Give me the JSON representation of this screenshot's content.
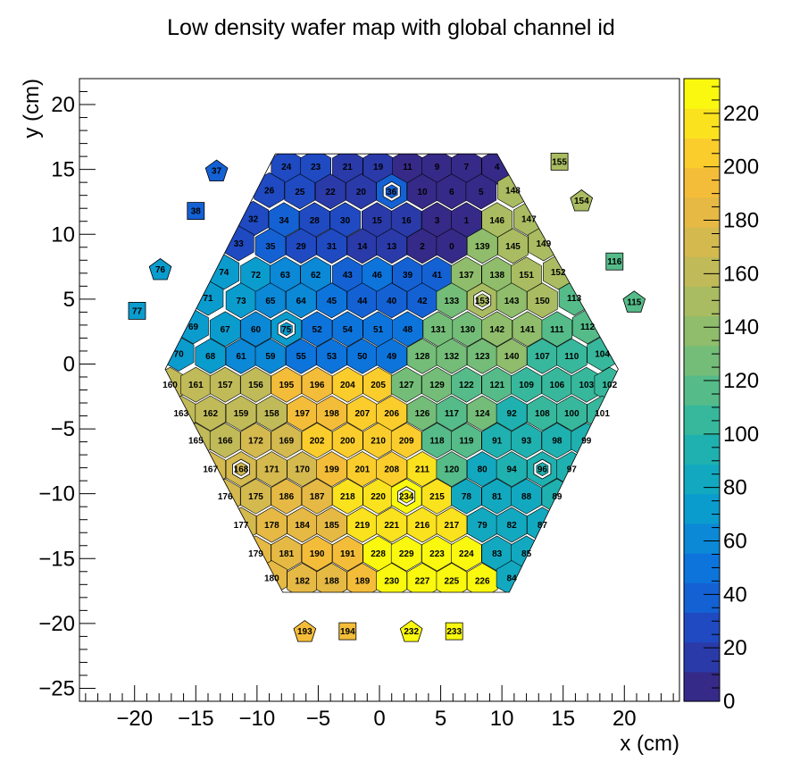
{
  "chart_data": {
    "type": "heatmap",
    "title": "Low density wafer map with global channel id",
    "xlabel": "x (cm)",
    "ylabel": "y (cm)",
    "xlim": [
      -24.5,
      24.5
    ],
    "ylim": [
      -26,
      22
    ],
    "x_ticks": [
      -20,
      -15,
      -10,
      -5,
      0,
      5,
      10,
      15,
      20
    ],
    "x_tick_labels": [
      "−20",
      "−15",
      "−10",
      "−5",
      "0",
      "5",
      "10",
      "15",
      "20"
    ],
    "y_ticks": [
      -25,
      -20,
      -15,
      -10,
      -5,
      0,
      5,
      10,
      15,
      20
    ],
    "y_tick_labels": [
      "−25",
      "−20",
      "−15",
      "−10",
      "−5",
      "0",
      "5",
      "10",
      "15",
      "20"
    ],
    "colorbar": {
      "range": [
        0,
        233
      ],
      "ticks": [
        0,
        20,
        40,
        60,
        80,
        100,
        120,
        140,
        160,
        180,
        200,
        220
      ],
      "tick_labels": [
        "0",
        "20",
        "40",
        "60",
        "80",
        "100",
        "120",
        "140",
        "160",
        "180",
        "200",
        "220"
      ],
      "palette": [
        "#352a87",
        "#2a3aa8",
        "#1f4ac1",
        "#1461d4",
        "#0d74dc",
        "#0b88d6",
        "#0b9cce",
        "#12a9c0",
        "#1fb1b0",
        "#37b89c",
        "#55bb89",
        "#74bd78",
        "#8fbd6b",
        "#a9bc61",
        "#c0ba59",
        "#d4b94f",
        "#e5b944",
        "#f4bd39",
        "#fbcd2c",
        "#fbe21e",
        "#f9f80e"
      ]
    },
    "cells": [
      {
        "id": 24,
        "x": -7.6,
        "y": 15.2
      },
      {
        "id": 23,
        "x": -5.2,
        "y": 15.2
      },
      {
        "id": 21,
        "x": -2.6,
        "y": 15.2
      },
      {
        "id": 19,
        "x": -0.1,
        "y": 15.2
      },
      {
        "id": 11,
        "x": 2.3,
        "y": 15.2
      },
      {
        "id": 9,
        "x": 4.7,
        "y": 15.2
      },
      {
        "id": 7,
        "x": 7.1,
        "y": 15.2
      },
      {
        "id": 4,
        "x": 9.6,
        "y": 15.2
      },
      {
        "id": 26,
        "x": -9.0,
        "y": 13.4
      },
      {
        "id": 25,
        "x": -6.5,
        "y": 13.3
      },
      {
        "id": 22,
        "x": -4.0,
        "y": 13.3
      },
      {
        "id": 20,
        "x": -1.5,
        "y": 13.3
      },
      {
        "id": 36,
        "x": 1.0,
        "y": 13.3
      },
      {
        "id": 10,
        "x": 3.5,
        "y": 13.3
      },
      {
        "id": 6,
        "x": 5.9,
        "y": 13.3
      },
      {
        "id": 5,
        "x": 8.3,
        "y": 13.3
      },
      {
        "id": 148,
        "x": 10.9,
        "y": 13.4
      },
      {
        "id": 32,
        "x": -10.3,
        "y": 11.2
      },
      {
        "id": 34,
        "x": -7.8,
        "y": 11.1
      },
      {
        "id": 28,
        "x": -5.3,
        "y": 11.1
      },
      {
        "id": 30,
        "x": -2.8,
        "y": 11.1
      },
      {
        "id": 15,
        "x": -0.2,
        "y": 11.1
      },
      {
        "id": 16,
        "x": 2.2,
        "y": 11.1
      },
      {
        "id": 3,
        "x": 4.7,
        "y": 11.1
      },
      {
        "id": 1,
        "x": 7.1,
        "y": 11.1
      },
      {
        "id": 146,
        "x": 9.6,
        "y": 11.1
      },
      {
        "id": 147,
        "x": 12.2,
        "y": 11.2
      },
      {
        "id": 33,
        "x": -11.5,
        "y": 9.3
      },
      {
        "id": 35,
        "x": -8.9,
        "y": 9.1
      },
      {
        "id": 29,
        "x": -6.4,
        "y": 9.1
      },
      {
        "id": 31,
        "x": -3.9,
        "y": 9.1
      },
      {
        "id": 14,
        "x": -1.4,
        "y": 9.1
      },
      {
        "id": 13,
        "x": 1.0,
        "y": 9.1
      },
      {
        "id": 2,
        "x": 3.5,
        "y": 9.1
      },
      {
        "id": 0,
        "x": 5.9,
        "y": 9.1
      },
      {
        "id": 139,
        "x": 8.4,
        "y": 9.1
      },
      {
        "id": 145,
        "x": 10.9,
        "y": 9.1
      },
      {
        "id": 149,
        "x": 13.4,
        "y": 9.3
      },
      {
        "id": 74,
        "x": -12.7,
        "y": 7.1
      },
      {
        "id": 72,
        "x": -10.1,
        "y": 6.9
      },
      {
        "id": 63,
        "x": -7.7,
        "y": 6.9
      },
      {
        "id": 62,
        "x": -5.2,
        "y": 6.9
      },
      {
        "id": 43,
        "x": -2.6,
        "y": 6.9
      },
      {
        "id": 46,
        "x": -0.2,
        "y": 6.9
      },
      {
        "id": 39,
        "x": 2.3,
        "y": 6.9
      },
      {
        "id": 41,
        "x": 4.7,
        "y": 6.9
      },
      {
        "id": 137,
        "x": 7.1,
        "y": 6.9
      },
      {
        "id": 138,
        "x": 9.6,
        "y": 6.9
      },
      {
        "id": 151,
        "x": 12.0,
        "y": 6.9
      },
      {
        "id": 152,
        "x": 14.6,
        "y": 7.1
      },
      {
        "id": 71,
        "x": -14.0,
        "y": 5.1
      },
      {
        "id": 73,
        "x": -11.3,
        "y": 4.9
      },
      {
        "id": 65,
        "x": -8.9,
        "y": 4.9
      },
      {
        "id": 64,
        "x": -6.4,
        "y": 4.9
      },
      {
        "id": 45,
        "x": -3.9,
        "y": 4.9
      },
      {
        "id": 44,
        "x": -1.4,
        "y": 4.9
      },
      {
        "id": 40,
        "x": 1.0,
        "y": 4.9
      },
      {
        "id": 42,
        "x": 3.5,
        "y": 4.9
      },
      {
        "id": 133,
        "x": 5.9,
        "y": 4.9
      },
      {
        "id": 153,
        "x": 8.4,
        "y": 4.9
      },
      {
        "id": 143,
        "x": 10.8,
        "y": 4.9
      },
      {
        "id": 150,
        "x": 13.3,
        "y": 4.9
      },
      {
        "id": 113,
        "x": 15.9,
        "y": 5.1
      },
      {
        "id": 69,
        "x": -15.2,
        "y": 2.9
      },
      {
        "id": 67,
        "x": -12.6,
        "y": 2.7
      },
      {
        "id": 60,
        "x": -10.1,
        "y": 2.7
      },
      {
        "id": 75,
        "x": -7.6,
        "y": 2.7
      },
      {
        "id": 52,
        "x": -5.1,
        "y": 2.7
      },
      {
        "id": 54,
        "x": -2.6,
        "y": 2.7
      },
      {
        "id": 51,
        "x": -0.1,
        "y": 2.7
      },
      {
        "id": 48,
        "x": 2.3,
        "y": 2.7
      },
      {
        "id": 131,
        "x": 4.8,
        "y": 2.7
      },
      {
        "id": 130,
        "x": 7.2,
        "y": 2.7
      },
      {
        "id": 142,
        "x": 9.6,
        "y": 2.7
      },
      {
        "id": 141,
        "x": 12.1,
        "y": 2.7
      },
      {
        "id": 111,
        "x": 14.5,
        "y": 2.7
      },
      {
        "id": 112,
        "x": 17.0,
        "y": 2.9
      },
      {
        "id": 70,
        "x": -16.4,
        "y": 0.8
      },
      {
        "id": 68,
        "x": -13.8,
        "y": 0.6
      },
      {
        "id": 61,
        "x": -11.3,
        "y": 0.6
      },
      {
        "id": 59,
        "x": -8.9,
        "y": 0.6
      },
      {
        "id": 55,
        "x": -6.4,
        "y": 0.6
      },
      {
        "id": 53,
        "x": -3.9,
        "y": 0.6
      },
      {
        "id": 50,
        "x": -1.4,
        "y": 0.6
      },
      {
        "id": 49,
        "x": 1.0,
        "y": 0.6
      },
      {
        "id": 128,
        "x": 3.5,
        "y": 0.6
      },
      {
        "id": 132,
        "x": 5.9,
        "y": 0.6
      },
      {
        "id": 123,
        "x": 8.4,
        "y": 0.6
      },
      {
        "id": 140,
        "x": 10.8,
        "y": 0.6
      },
      {
        "id": 107,
        "x": 13.3,
        "y": 0.6
      },
      {
        "id": 110,
        "x": 15.7,
        "y": 0.6
      },
      {
        "id": 104,
        "x": 18.2,
        "y": 0.8
      },
      {
        "id": 160,
        "x": -17.1,
        "y": -1.6
      },
      {
        "id": 161,
        "x": -15.0,
        "y": -1.6
      },
      {
        "id": 157,
        "x": -12.6,
        "y": -1.6
      },
      {
        "id": 156,
        "x": -10.1,
        "y": -1.6
      },
      {
        "id": 195,
        "x": -7.6,
        "y": -1.6
      },
      {
        "id": 196,
        "x": -5.1,
        "y": -1.6
      },
      {
        "id": 204,
        "x": -2.6,
        "y": -1.6
      },
      {
        "id": 205,
        "x": -0.1,
        "y": -1.6
      },
      {
        "id": 127,
        "x": 2.2,
        "y": -1.6
      },
      {
        "id": 129,
        "x": 4.7,
        "y": -1.6
      },
      {
        "id": 122,
        "x": 7.1,
        "y": -1.6
      },
      {
        "id": 121,
        "x": 9.6,
        "y": -1.6
      },
      {
        "id": 109,
        "x": 12.0,
        "y": -1.6
      },
      {
        "id": 106,
        "x": 14.5,
        "y": -1.6
      },
      {
        "id": 103,
        "x": 16.9,
        "y": -1.6
      },
      {
        "id": 102,
        "x": 18.8,
        "y": -1.6
      },
      {
        "id": 163,
        "x": -16.2,
        "y": -3.8
      },
      {
        "id": 162,
        "x": -13.8,
        "y": -3.8
      },
      {
        "id": 159,
        "x": -11.3,
        "y": -3.8
      },
      {
        "id": 158,
        "x": -8.8,
        "y": -3.8
      },
      {
        "id": 197,
        "x": -6.3,
        "y": -3.8
      },
      {
        "id": 198,
        "x": -3.9,
        "y": -3.8
      },
      {
        "id": 207,
        "x": -1.4,
        "y": -3.8
      },
      {
        "id": 206,
        "x": 1.0,
        "y": -3.8
      },
      {
        "id": 126,
        "x": 3.5,
        "y": -3.8
      },
      {
        "id": 117,
        "x": 5.9,
        "y": -3.8
      },
      {
        "id": 124,
        "x": 8.4,
        "y": -3.8
      },
      {
        "id": 92,
        "x": 10.8,
        "y": -3.8
      },
      {
        "id": 108,
        "x": 13.3,
        "y": -3.8
      },
      {
        "id": 100,
        "x": 15.7,
        "y": -3.8
      },
      {
        "id": 101,
        "x": 18.2,
        "y": -3.8
      },
      {
        "id": 165,
        "x": -15.0,
        "y": -5.9
      },
      {
        "id": 166,
        "x": -12.6,
        "y": -5.9
      },
      {
        "id": 172,
        "x": -10.1,
        "y": -5.9
      },
      {
        "id": 169,
        "x": -7.6,
        "y": -5.9
      },
      {
        "id": 202,
        "x": -5.1,
        "y": -5.9
      },
      {
        "id": 200,
        "x": -2.6,
        "y": -5.9
      },
      {
        "id": 210,
        "x": -0.1,
        "y": -5.9
      },
      {
        "id": 209,
        "x": 2.2,
        "y": -5.9
      },
      {
        "id": 118,
        "x": 4.7,
        "y": -5.9
      },
      {
        "id": 119,
        "x": 7.1,
        "y": -5.9
      },
      {
        "id": 91,
        "x": 9.6,
        "y": -5.9
      },
      {
        "id": 93,
        "x": 12.0,
        "y": -5.9
      },
      {
        "id": 98,
        "x": 14.5,
        "y": -5.9
      },
      {
        "id": 99,
        "x": 16.9,
        "y": -5.9
      },
      {
        "id": 167,
        "x": -13.8,
        "y": -8.1
      },
      {
        "id": 168,
        "x": -11.3,
        "y": -8.1
      },
      {
        "id": 171,
        "x": -8.8,
        "y": -8.1
      },
      {
        "id": 170,
        "x": -6.3,
        "y": -8.1
      },
      {
        "id": 199,
        "x": -3.9,
        "y": -8.1
      },
      {
        "id": 201,
        "x": -1.4,
        "y": -8.1
      },
      {
        "id": 208,
        "x": 1.0,
        "y": -8.1
      },
      {
        "id": 211,
        "x": 3.5,
        "y": -8.1
      },
      {
        "id": 120,
        "x": 5.9,
        "y": -8.1
      },
      {
        "id": 80,
        "x": 8.4,
        "y": -8.1
      },
      {
        "id": 94,
        "x": 10.8,
        "y": -8.1
      },
      {
        "id": 96,
        "x": 13.3,
        "y": -8.1
      },
      {
        "id": 97,
        "x": 15.7,
        "y": -8.1
      },
      {
        "id": 176,
        "x": -12.6,
        "y": -10.2
      },
      {
        "id": 175,
        "x": -10.1,
        "y": -10.2
      },
      {
        "id": 186,
        "x": -7.6,
        "y": -10.2
      },
      {
        "id": 187,
        "x": -5.1,
        "y": -10.2
      },
      {
        "id": 218,
        "x": -2.6,
        "y": -10.2
      },
      {
        "id": 220,
        "x": -0.1,
        "y": -10.2
      },
      {
        "id": 234,
        "x": 2.2,
        "y": -10.2
      },
      {
        "id": 215,
        "x": 4.7,
        "y": -10.2
      },
      {
        "id": 78,
        "x": 7.1,
        "y": -10.2
      },
      {
        "id": 81,
        "x": 9.6,
        "y": -10.2
      },
      {
        "id": 88,
        "x": 12.0,
        "y": -10.2
      },
      {
        "id": 89,
        "x": 14.5,
        "y": -10.2
      },
      {
        "id": 177,
        "x": -11.3,
        "y": -12.4
      },
      {
        "id": 178,
        "x": -8.8,
        "y": -12.4
      },
      {
        "id": 184,
        "x": -6.3,
        "y": -12.4
      },
      {
        "id": 185,
        "x": -3.9,
        "y": -12.4
      },
      {
        "id": 219,
        "x": -1.4,
        "y": -12.4
      },
      {
        "id": 221,
        "x": 1.0,
        "y": -12.4
      },
      {
        "id": 216,
        "x": 3.5,
        "y": -12.4
      },
      {
        "id": 217,
        "x": 5.9,
        "y": -12.4
      },
      {
        "id": 79,
        "x": 8.4,
        "y": -12.4
      },
      {
        "id": 82,
        "x": 10.8,
        "y": -12.4
      },
      {
        "id": 87,
        "x": 13.3,
        "y": -12.4
      },
      {
        "id": 179,
        "x": -10.1,
        "y": -14.6
      },
      {
        "id": 181,
        "x": -7.6,
        "y": -14.6
      },
      {
        "id": 190,
        "x": -5.1,
        "y": -14.6
      },
      {
        "id": 191,
        "x": -2.6,
        "y": -14.6
      },
      {
        "id": 228,
        "x": -0.1,
        "y": -14.6
      },
      {
        "id": 229,
        "x": 2.2,
        "y": -14.6
      },
      {
        "id": 223,
        "x": 4.7,
        "y": -14.6
      },
      {
        "id": 224,
        "x": 7.1,
        "y": -14.6
      },
      {
        "id": 83,
        "x": 9.6,
        "y": -14.6
      },
      {
        "id": 85,
        "x": 12.0,
        "y": -14.6
      },
      {
        "id": 180,
        "x": -8.8,
        "y": -16.5
      },
      {
        "id": 182,
        "x": -6.3,
        "y": -16.7
      },
      {
        "id": 188,
        "x": -3.9,
        "y": -16.7
      },
      {
        "id": 189,
        "x": -1.4,
        "y": -16.7
      },
      {
        "id": 230,
        "x": 1.0,
        "y": -16.7
      },
      {
        "id": 227,
        "x": 3.5,
        "y": -16.7
      },
      {
        "id": 225,
        "x": 5.9,
        "y": -16.7
      },
      {
        "id": 226,
        "x": 8.4,
        "y": -16.7
      },
      {
        "id": 84,
        "x": 10.8,
        "y": -16.5
      }
    ],
    "calibration_cells": [
      {
        "id": 36,
        "x": 1.0,
        "y": 13.3
      },
      {
        "id": 75,
        "x": -7.6,
        "y": 2.7
      },
      {
        "id": 153,
        "x": 8.4,
        "y": 4.9
      },
      {
        "id": 168,
        "x": -11.3,
        "y": -8.1
      },
      {
        "id": 96,
        "x": 13.3,
        "y": -8.1
      },
      {
        "id": 234,
        "x": 2.2,
        "y": -10.2
      }
    ],
    "extra_channels": [
      {
        "id": 37,
        "x": -13.3,
        "y": 14.9,
        "shape": "pentagon"
      },
      {
        "id": 38,
        "x": -15.0,
        "y": 11.8,
        "shape": "square"
      },
      {
        "id": 76,
        "x": -17.9,
        "y": 7.3,
        "shape": "pentagon"
      },
      {
        "id": 77,
        "x": -19.8,
        "y": 4.1,
        "shape": "square"
      },
      {
        "id": 155,
        "x": 14.7,
        "y": 15.6,
        "shape": "square"
      },
      {
        "id": 154,
        "x": 16.5,
        "y": 12.6,
        "shape": "pentagon"
      },
      {
        "id": 116,
        "x": 19.2,
        "y": 7.9,
        "shape": "square"
      },
      {
        "id": 115,
        "x": 20.8,
        "y": 4.8,
        "shape": "pentagon"
      },
      {
        "id": 193,
        "x": -6.1,
        "y": -20.6,
        "shape": "pentagon"
      },
      {
        "id": 194,
        "x": -2.6,
        "y": -20.6,
        "shape": "square"
      },
      {
        "id": 232,
        "x": 2.6,
        "y": -20.6,
        "shape": "pentagon"
      },
      {
        "id": 233,
        "x": 6.1,
        "y": -20.6,
        "shape": "square"
      }
    ]
  }
}
